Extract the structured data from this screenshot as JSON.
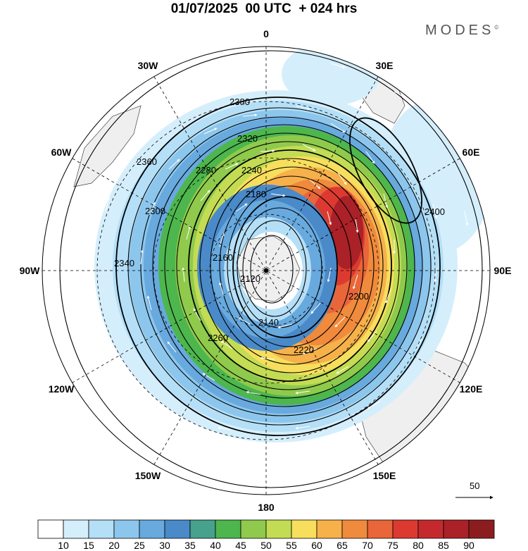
{
  "header": {
    "title": "01/07/2025  00 UTC  + 024 hrs",
    "brand": "MODES",
    "brand_mark": "©"
  },
  "map": {
    "projection": "south-polar-stereographic",
    "longitude_labels": [
      {
        "text": "0",
        "angle": 0
      },
      {
        "text": "30E",
        "angle": 30
      },
      {
        "text": "60E",
        "angle": 60
      },
      {
        "text": "90E",
        "angle": 90
      },
      {
        "text": "120E",
        "angle": 120
      },
      {
        "text": "150E",
        "angle": 150
      },
      {
        "text": "180",
        "angle": 180
      },
      {
        "text": "150W",
        "angle": 210
      },
      {
        "text": "120W",
        "angle": 240
      },
      {
        "text": "90W",
        "angle": 270
      },
      {
        "text": "60W",
        "angle": 300
      },
      {
        "text": "30W",
        "angle": 330
      }
    ],
    "contour_labels": [
      "2380",
      "2360",
      "2340",
      "2320",
      "2300",
      "2280",
      "2260",
      "2240",
      "2220",
      "2200",
      "2180",
      "2160",
      "2140",
      "2120",
      "2400"
    ],
    "wind_vector_reference": {
      "value": "50"
    }
  },
  "colorbar": {
    "ticks": [
      "10",
      "15",
      "20",
      "25",
      "30",
      "35",
      "40",
      "45",
      "50",
      "55",
      "60",
      "65",
      "70",
      "75",
      "80",
      "85",
      "90"
    ],
    "colors": [
      "#ffffff",
      "#d5eefc",
      "#b4dff7",
      "#8cc6ec",
      "#68a9de",
      "#4a8ac8",
      "#47a18c",
      "#4db64d",
      "#8fca4c",
      "#c3dc54",
      "#f7de5c",
      "#f6b14b",
      "#f08a3c",
      "#e9653a",
      "#dc3a30",
      "#c42a2d",
      "#aa2128",
      "#8c1d1e"
    ]
  }
}
